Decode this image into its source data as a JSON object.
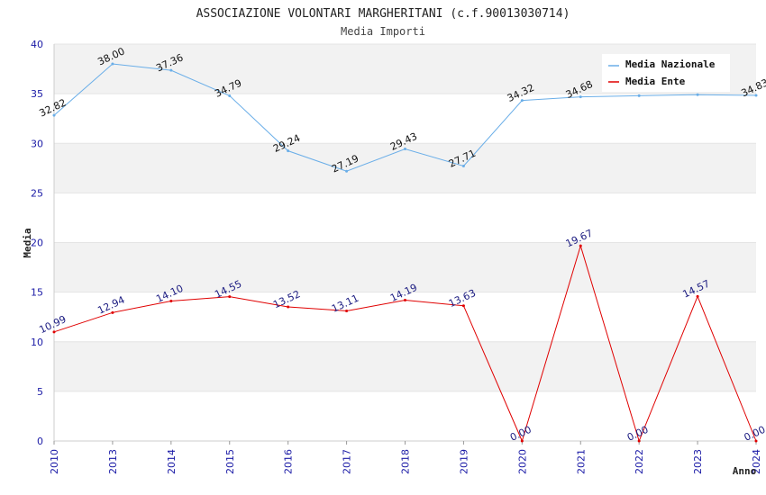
{
  "chart_data": {
    "type": "line",
    "title": "ASSOCIAZIONE VOLONTARI MARGHERITANI (c.f.90013030714)",
    "subtitle": "Media Importi",
    "xlabel": "Anno",
    "ylabel": "Media",
    "categories": [
      "2010",
      "2013",
      "2014",
      "2015",
      "2016",
      "2017",
      "2018",
      "2019",
      "2020",
      "2021",
      "2022",
      "2023",
      "2024"
    ],
    "ylim": [
      0,
      40
    ],
    "yticks": [
      "0",
      "5",
      "10",
      "15",
      "20",
      "25",
      "30",
      "35",
      "40"
    ],
    "legend_position": "top-right",
    "series": [
      {
        "name": "Media Nazionale",
        "color": "#6aaee8",
        "values": [
          32.82,
          38.0,
          37.36,
          34.79,
          29.24,
          27.19,
          29.43,
          27.71,
          34.32,
          34.68,
          34.8,
          34.9,
          34.83
        ],
        "labels": [
          "32.82",
          "38.00",
          "37.36",
          "34.79",
          "29.24",
          "27.19",
          "29.43",
          "27.71",
          "34.32",
          "34.68",
          "",
          "",
          "34.83"
        ]
      },
      {
        "name": "Media Ente",
        "color": "#e00000",
        "values": [
          10.99,
          12.94,
          14.1,
          14.55,
          13.52,
          13.11,
          14.19,
          13.63,
          0.0,
          19.67,
          0.0,
          14.57,
          0.0
        ],
        "labels": [
          "10.99",
          "12.94",
          "14.10",
          "14.55",
          "13.52",
          "13.11",
          "14.19",
          "13.63",
          "0.00",
          "19.67",
          "0.00",
          "14.57",
          "0.00"
        ]
      }
    ]
  }
}
